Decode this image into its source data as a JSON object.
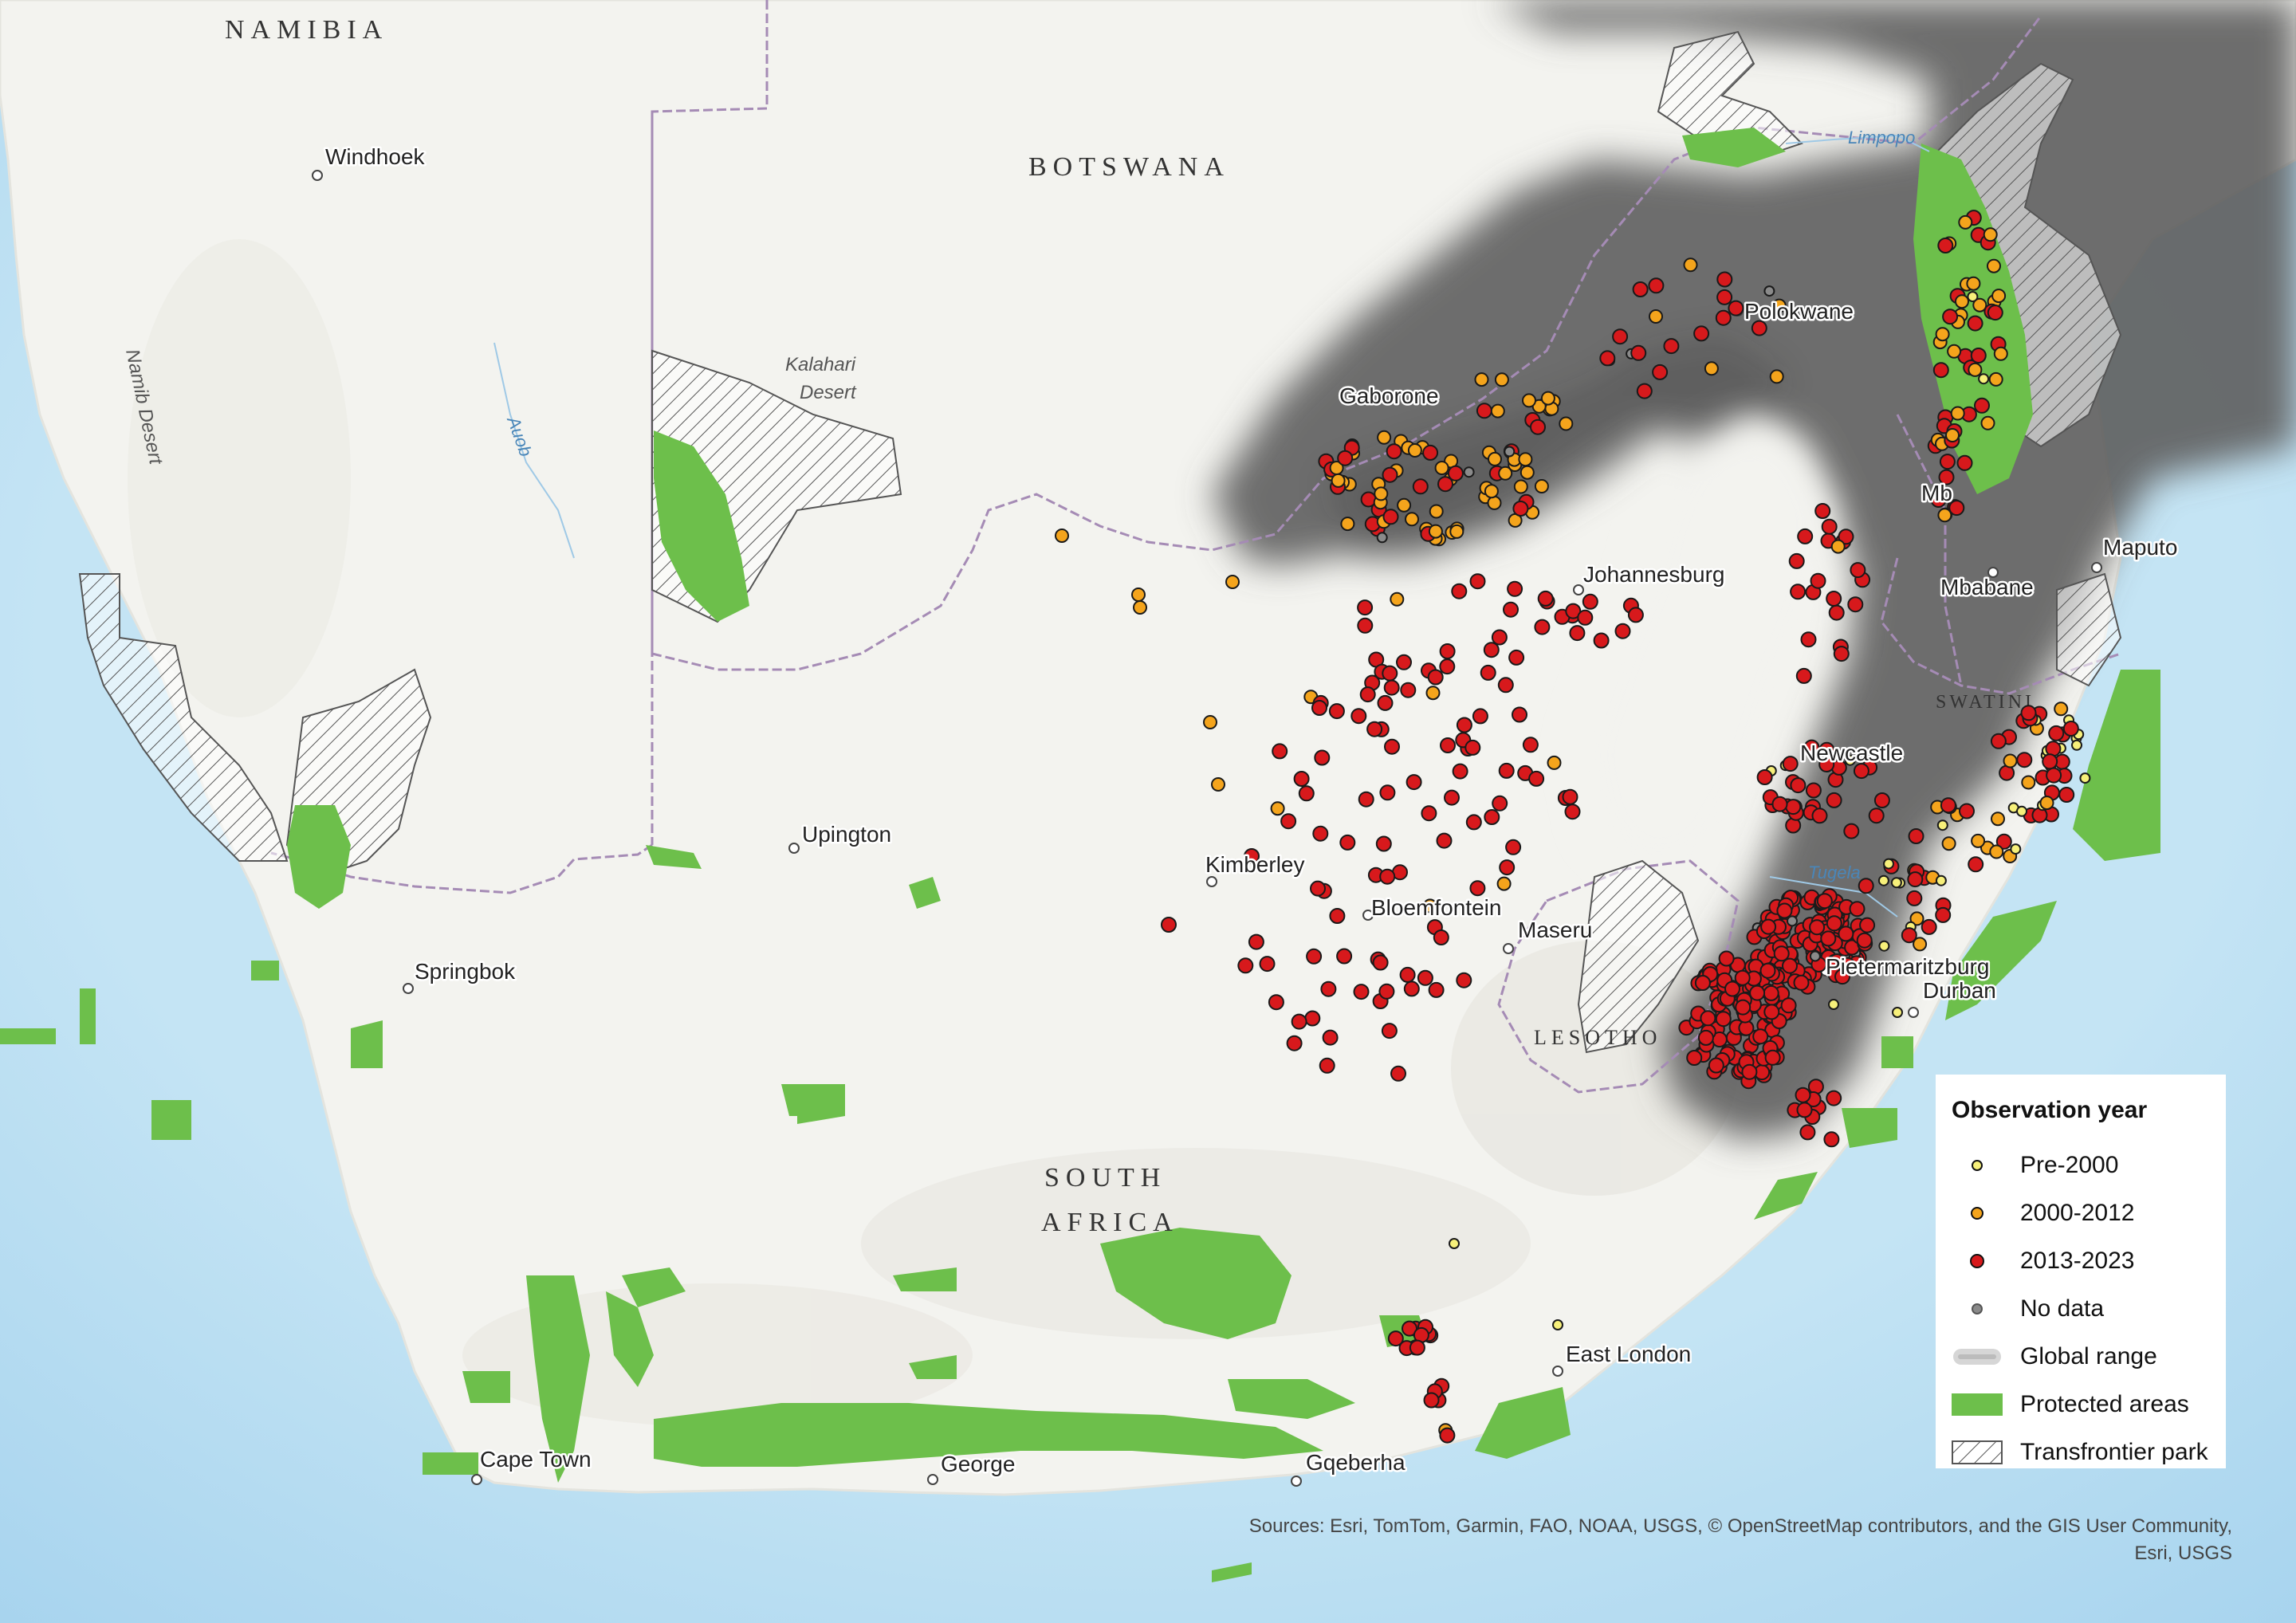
{
  "countries": {
    "namibia": "NAMIBIA",
    "botswana": "BOTSWANA",
    "south_africa_line1": "SOUTH",
    "south_africa_line2": "AFRICA",
    "lesotho": "LESOTHO",
    "eswatini": "SWATINI"
  },
  "cities": {
    "windhoek": "Windhoek",
    "gaborone": "Gaborone",
    "polokwane": "Polokwane",
    "johannesburg": "Johannesburg",
    "maputo": "Maputo",
    "mbabane": "Mbabane",
    "mbombela": "Mb",
    "newcastle": "Newcastle",
    "upington": "Upington",
    "kimberley": "Kimberley",
    "bloemfontein": "Bloemfontein",
    "maseru": "Maseru",
    "pietermaritzburg": "Pietermaritzburg",
    "durban": "Durban",
    "springbok": "Springbok",
    "east_london": "East London",
    "cape_town": "Cape Town",
    "george": "George",
    "gqeberha": "Gqeberha"
  },
  "features": {
    "kalahari_line1": "Kalahari",
    "kalahari_line2": "Desert",
    "namib": "Namib Desert",
    "auob": "Auob",
    "limpopo": "Limpopo",
    "tugela": "Tugela"
  },
  "legend": {
    "title": "Observation year",
    "items": [
      {
        "label": "Pre-2000",
        "symbol": "dot",
        "color": "#f7f07a"
      },
      {
        "label": "2000-2012",
        "symbol": "dot",
        "color": "#f4a41c"
      },
      {
        "label": "2013-2023",
        "symbol": "dot",
        "color": "#d7191c"
      },
      {
        "label": "No data",
        "symbol": "dot",
        "color": "#8a8a8a"
      },
      {
        "label": "Global range",
        "symbol": "range",
        "color": "#6b6b6b"
      },
      {
        "label": "Protected areas",
        "symbol": "fill",
        "color": "#6dbf4b"
      },
      {
        "label": "Transfrontier park",
        "symbol": "hatch",
        "color": "#555555"
      }
    ]
  },
  "attribution": {
    "line1": "Sources: Esri, TomTom, Garmin, FAO, NOAA, USGS, © OpenStreetMap contributors, and the GIS User Community,",
    "line2": "Esri, USGS"
  },
  "colors": {
    "ocean": "#b6dbf0",
    "land": "#f2f2ee",
    "range": "#5a5a5a",
    "protected": "#6dbf4b",
    "border": "#a58bb5"
  }
}
